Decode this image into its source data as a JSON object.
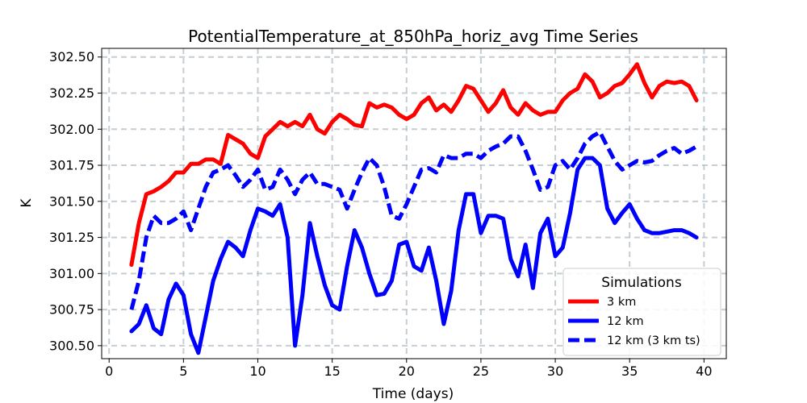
{
  "chart_data": {
    "type": "line",
    "title": "PotentialTemperature_at_850hPa_horiz_avg Time Series",
    "xlabel": "Time (days)",
    "ylabel": "K",
    "xlim": [
      -0.5,
      41.5
    ],
    "ylim": [
      300.41,
      302.56
    ],
    "x_ticks": [
      0,
      5,
      10,
      15,
      20,
      25,
      30,
      35,
      40
    ],
    "y_ticks": [
      300.5,
      300.75,
      301.0,
      301.25,
      301.5,
      301.75,
      302.0,
      302.25,
      302.5
    ],
    "y_tick_labels": [
      "300.50",
      "300.75",
      "301.00",
      "301.25",
      "301.50",
      "301.75",
      "302.00",
      "302.25",
      "302.50"
    ],
    "grid": true,
    "legend": {
      "title": "Simulations",
      "position": "lower-right"
    },
    "series": [
      {
        "name": "3 km",
        "color": "#ff0000",
        "style": "solid",
        "x": [
          1.5,
          2.0,
          2.5,
          3.0,
          3.5,
          4.0,
          4.5,
          5.0,
          5.5,
          6.0,
          6.5,
          7.0,
          7.5,
          8.0,
          8.5,
          9.0,
          9.5,
          10.0,
          10.5,
          11.0,
          11.5,
          12.0,
          12.5,
          13.0,
          13.5,
          14.0,
          14.5,
          15.0,
          15.5,
          16.0,
          16.5,
          17.0,
          17.5,
          18.0,
          18.5,
          19.0,
          19.5,
          20.0,
          20.5,
          21.0,
          21.5,
          22.0,
          22.5,
          23.0,
          23.5,
          24.0,
          24.5,
          25.0,
          25.5,
          26.0,
          26.5,
          27.0,
          27.5,
          28.0,
          28.5,
          29.0,
          29.5,
          30.0,
          30.5,
          31.0,
          31.5,
          32.0,
          32.5,
          33.0,
          33.5,
          34.0,
          34.5,
          35.0,
          35.5,
          36.0,
          36.5,
          37.0,
          37.5,
          38.0,
          38.5,
          39.0,
          39.5
        ],
        "values": [
          301.06,
          301.35,
          301.55,
          301.57,
          301.6,
          301.64,
          301.7,
          301.7,
          301.76,
          301.76,
          301.79,
          301.79,
          301.76,
          301.96,
          301.93,
          301.9,
          301.83,
          301.8,
          301.95,
          302.0,
          302.05,
          302.02,
          302.05,
          302.02,
          302.1,
          302.0,
          301.97,
          302.05,
          302.1,
          302.07,
          302.03,
          302.02,
          302.18,
          302.15,
          302.17,
          302.15,
          302.1,
          302.07,
          302.1,
          302.18,
          302.22,
          302.13,
          302.17,
          302.12,
          302.2,
          302.3,
          302.28,
          302.2,
          302.12,
          302.18,
          302.27,
          302.15,
          302.1,
          302.18,
          302.13,
          302.1,
          302.12,
          302.12,
          302.2,
          302.25,
          302.28,
          302.38,
          302.33,
          302.22,
          302.25,
          302.3,
          302.32,
          302.38,
          302.45,
          302.32,
          302.22,
          302.3,
          302.33,
          302.32,
          302.33,
          302.3,
          302.2
        ]
      },
      {
        "name": "12 km",
        "color": "#0000ff",
        "style": "solid",
        "x": [
          1.5,
          2.0,
          2.5,
          3.0,
          3.5,
          4.0,
          4.5,
          5.0,
          5.5,
          6.0,
          6.5,
          7.0,
          7.5,
          8.0,
          8.5,
          9.0,
          9.5,
          10.0,
          10.5,
          11.0,
          11.5,
          12.0,
          12.5,
          13.0,
          13.5,
          14.0,
          14.5,
          15.0,
          15.5,
          16.0,
          16.5,
          17.0,
          17.5,
          18.0,
          18.5,
          19.0,
          19.5,
          20.0,
          20.5,
          21.0,
          21.5,
          22.0,
          22.5,
          23.0,
          23.5,
          24.0,
          24.5,
          25.0,
          25.5,
          26.0,
          26.5,
          27.0,
          27.5,
          28.0,
          28.5,
          29.0,
          29.5,
          30.0,
          30.5,
          31.0,
          31.5,
          32.0,
          32.5,
          33.0,
          33.5,
          34.0,
          34.5,
          35.0,
          35.5,
          36.0,
          36.5,
          37.0,
          37.5,
          38.0,
          38.5,
          39.0,
          39.5
        ],
        "values": [
          300.6,
          300.65,
          300.78,
          300.62,
          300.58,
          300.82,
          300.93,
          300.85,
          300.58,
          300.45,
          300.7,
          300.95,
          301.1,
          301.22,
          301.18,
          301.12,
          301.3,
          301.45,
          301.43,
          301.4,
          301.48,
          301.25,
          300.5,
          300.85,
          301.35,
          301.12,
          300.92,
          300.78,
          300.75,
          301.05,
          301.3,
          301.18,
          301.0,
          300.85,
          300.86,
          300.95,
          301.2,
          301.22,
          301.05,
          301.02,
          301.18,
          300.95,
          300.65,
          300.88,
          301.3,
          301.55,
          301.55,
          301.28,
          301.4,
          301.4,
          301.38,
          301.1,
          300.98,
          301.2,
          300.9,
          301.28,
          301.38,
          301.12,
          301.18,
          301.42,
          301.72,
          301.8,
          301.8,
          301.75,
          301.45,
          301.35,
          301.42,
          301.48,
          301.38,
          301.3,
          301.28,
          301.28,
          301.29,
          301.3,
          301.3,
          301.28,
          301.25
        ]
      },
      {
        "name": "12 km (3 km ts)",
        "color": "#0000ff",
        "style": "dashed",
        "x": [
          1.5,
          2.0,
          2.5,
          3.0,
          3.5,
          4.0,
          4.5,
          5.0,
          5.5,
          6.0,
          6.5,
          7.0,
          7.5,
          8.0,
          8.5,
          9.0,
          9.5,
          10.0,
          10.5,
          11.0,
          11.5,
          12.0,
          12.5,
          13.0,
          13.5,
          14.0,
          14.5,
          15.0,
          15.5,
          16.0,
          16.5,
          17.0,
          17.5,
          18.0,
          18.5,
          19.0,
          19.5,
          20.0,
          20.5,
          21.0,
          21.5,
          22.0,
          22.5,
          23.0,
          23.5,
          24.0,
          24.5,
          25.0,
          25.5,
          26.0,
          26.5,
          27.0,
          27.5,
          28.0,
          28.5,
          29.0,
          29.5,
          30.0,
          30.5,
          31.0,
          31.5,
          32.0,
          32.5,
          33.0,
          33.5,
          34.0,
          34.5,
          35.0,
          35.5,
          36.0,
          36.5,
          37.0,
          37.5,
          38.0,
          38.5,
          39.0,
          39.5
        ],
        "values": [
          300.75,
          300.95,
          301.25,
          301.4,
          301.35,
          301.35,
          301.38,
          301.43,
          301.3,
          301.45,
          301.6,
          301.7,
          301.72,
          301.75,
          301.68,
          301.6,
          301.65,
          301.72,
          301.58,
          301.6,
          301.72,
          301.65,
          301.55,
          301.65,
          301.7,
          301.62,
          301.62,
          301.6,
          301.58,
          301.45,
          301.58,
          301.7,
          301.8,
          301.75,
          301.6,
          301.4,
          301.38,
          301.48,
          301.6,
          301.72,
          301.73,
          301.7,
          301.82,
          301.8,
          301.8,
          301.83,
          301.83,
          301.8,
          301.85,
          301.88,
          301.9,
          301.95,
          301.95,
          301.85,
          301.72,
          301.58,
          301.6,
          301.75,
          301.78,
          301.72,
          301.8,
          301.9,
          301.95,
          301.98,
          301.88,
          301.78,
          301.72,
          301.75,
          301.78,
          301.77,
          301.78,
          301.82,
          301.85,
          301.87,
          301.83,
          301.85,
          301.88
        ]
      }
    ]
  }
}
